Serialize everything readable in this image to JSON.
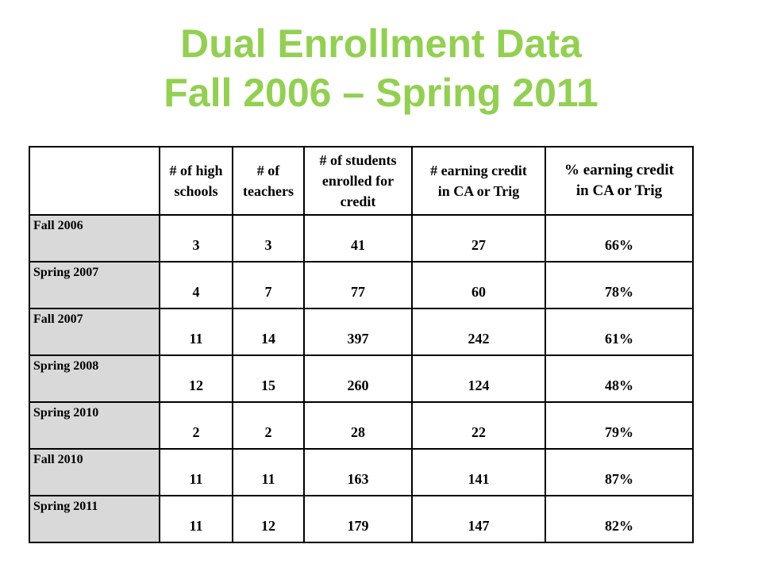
{
  "title": {
    "line1": "Dual Enrollment Data",
    "line2": "Fall 2006 – Spring 2011"
  },
  "table": {
    "headers": [
      [
        "# of high",
        "schools"
      ],
      [
        "# of",
        "teachers"
      ],
      [
        "# of students",
        "enrolled for",
        "credit"
      ],
      [
        "# earning credit",
        "in CA or Trig"
      ],
      [
        "% earning credit",
        "in CA or Trig"
      ]
    ],
    "rows": [
      {
        "label": "Fall 2006",
        "values": [
          "3",
          "3",
          "41",
          "27",
          "66%"
        ]
      },
      {
        "label": "Spring 2007",
        "values": [
          "4",
          "7",
          "77",
          "60",
          "78%"
        ]
      },
      {
        "label": "Fall 2007",
        "values": [
          "11",
          "14",
          "397",
          "242",
          "61%"
        ]
      },
      {
        "label": "Spring 2008",
        "values": [
          "12",
          "15",
          "260",
          "124",
          "48%"
        ]
      },
      {
        "label": "Spring 2010",
        "values": [
          "2",
          "2",
          "28",
          "22",
          "79%"
        ]
      },
      {
        "label": "Fall 2010",
        "values": [
          "11",
          "11",
          "163",
          "141",
          "87%"
        ]
      },
      {
        "label": "Spring 2011",
        "values": [
          "11",
          "12",
          "179",
          "147",
          "82%"
        ]
      }
    ]
  },
  "colors": {
    "title": "#92d050",
    "row_label_bg": "#d9d9d9",
    "border": "#000000"
  }
}
